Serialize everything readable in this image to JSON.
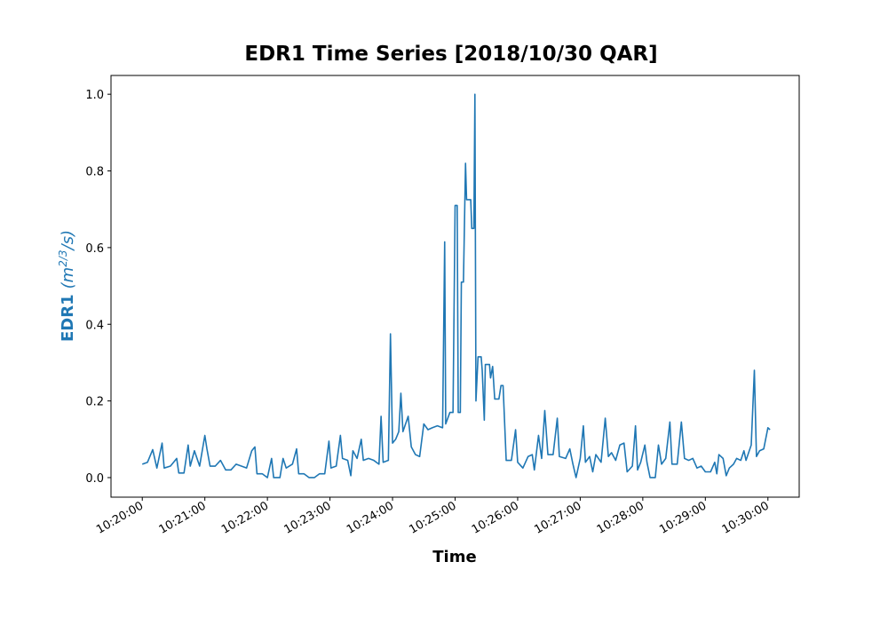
{
  "chart_data": {
    "type": "line",
    "title": "EDR1 Time Series [2018/10/30 QAR]",
    "xlabel": "Time",
    "ylabel_name": "EDR1",
    "ylabel_unit": [
      "(m",
      "2/3",
      "/s)"
    ],
    "ylabel_color": "#1f77b4",
    "color": "#1f77b4",
    "x": [
      "10:20:00",
      "10:20:05",
      "10:20:10",
      "10:20:14",
      "10:20:19",
      "10:20:21",
      "10:20:27",
      "10:20:30",
      "10:20:33",
      "10:20:35",
      "10:20:40",
      "10:20:44",
      "10:20:46",
      "10:20:50",
      "10:20:55",
      "10:21:00",
      "10:21:02",
      "10:21:05",
      "10:21:10",
      "10:21:15",
      "10:21:20",
      "10:21:25",
      "10:21:30",
      "10:21:35",
      "10:21:40",
      "10:21:45",
      "10:21:48",
      "10:21:50",
      "10:21:55",
      "10:22:00",
      "10:22:04",
      "10:22:06",
      "10:22:12",
      "10:22:15",
      "10:22:18",
      "10:22:24",
      "10:22:28",
      "10:22:30",
      "10:22:35",
      "10:22:40",
      "10:22:45",
      "10:22:50",
      "10:22:55",
      "10:22:59",
      "10:23:01",
      "10:23:06",
      "10:23:10",
      "10:23:12",
      "10:23:17",
      "10:23:20",
      "10:23:22",
      "10:23:26",
      "10:23:30",
      "10:23:32",
      "10:23:37",
      "10:23:42",
      "10:23:47",
      "10:23:49",
      "10:23:51",
      "10:23:56",
      "10:23:58",
      "10:24:00",
      "10:24:03",
      "10:24:06",
      "10:24:08",
      "10:24:10",
      "10:24:15",
      "10:24:18",
      "10:24:22",
      "10:24:26",
      "10:24:30",
      "10:24:34",
      "10:24:38",
      "10:24:43",
      "10:24:48",
      "10:24:50",
      "10:24:51",
      "10:24:55",
      "10:24:58",
      "10:25:00",
      "10:25:02",
      "10:25:03",
      "10:25:05",
      "10:25:06",
      "10:25:08",
      "10:25:10",
      "10:25:11",
      "10:25:15",
      "10:25:16",
      "10:25:18",
      "10:25:19",
      "10:25:20",
      "10:25:22",
      "10:25:25",
      "10:25:26",
      "10:25:28",
      "10:25:29",
      "10:25:33",
      "10:25:34",
      "10:25:36",
      "10:25:38",
      "10:25:42",
      "10:25:44",
      "10:25:46",
      "10:25:49",
      "10:25:54",
      "10:25:58",
      "10:26:00",
      "10:26:05",
      "10:26:10",
      "10:26:14",
      "10:26:16",
      "10:26:20",
      "10:26:23",
      "10:26:26",
      "10:26:29",
      "10:26:34",
      "10:26:38",
      "10:26:40",
      "10:26:46",
      "10:26:50",
      "10:26:53",
      "10:26:56",
      "10:27:00",
      "10:27:03",
      "10:27:05",
      "10:27:09",
      "10:27:12",
      "10:27:15",
      "10:27:20",
      "10:27:24",
      "10:27:27",
      "10:27:30",
      "10:27:34",
      "10:27:38",
      "10:27:42",
      "10:27:45",
      "10:27:50",
      "10:27:53",
      "10:27:55",
      "10:27:58",
      "10:28:02",
      "10:28:04",
      "10:28:07",
      "10:28:12",
      "10:28:15",
      "10:28:18",
      "10:28:22",
      "10:28:26",
      "10:28:28",
      "10:28:33",
      "10:28:37",
      "10:28:40",
      "10:28:44",
      "10:28:48",
      "10:28:52",
      "10:28:56",
      "10:29:00",
      "10:29:05",
      "10:29:09",
      "10:29:11",
      "10:29:13",
      "10:29:17",
      "10:29:20",
      "10:29:23",
      "10:29:27",
      "10:29:30",
      "10:29:34",
      "10:29:37",
      "10:29:39",
      "10:29:44",
      "10:29:47",
      "10:29:49",
      "10:29:52",
      "10:29:56",
      "10:30:00",
      "10:30:02"
    ],
    "values": [
      0.035,
      0.04,
      0.073,
      0.025,
      0.09,
      0.025,
      0.03,
      0.04,
      0.05,
      0.012,
      0.012,
      0.085,
      0.03,
      0.07,
      0.03,
      0.11,
      0.075,
      0.03,
      0.03,
      0.045,
      0.02,
      0.02,
      0.035,
      0.03,
      0.025,
      0.07,
      0.08,
      0.01,
      0.01,
      0.0,
      0.05,
      0.0,
      0.0,
      0.05,
      0.025,
      0.035,
      0.075,
      0.01,
      0.01,
      0.0,
      0.0,
      0.01,
      0.01,
      0.095,
      0.025,
      0.03,
      0.11,
      0.05,
      0.045,
      0.005,
      0.07,
      0.05,
      0.1,
      0.045,
      0.05,
      0.045,
      0.035,
      0.16,
      0.04,
      0.045,
      0.375,
      0.09,
      0.1,
      0.12,
      0.22,
      0.12,
      0.16,
      0.08,
      0.06,
      0.055,
      0.14,
      0.125,
      0.13,
      0.135,
      0.13,
      0.615,
      0.14,
      0.17,
      0.17,
      0.71,
      0.71,
      0.17,
      0.17,
      0.51,
      0.51,
      0.82,
      0.725,
      0.725,
      0.65,
      0.65,
      1.0,
      0.2,
      0.315,
      0.315,
      0.28,
      0.15,
      0.295,
      0.295,
      0.26,
      0.29,
      0.205,
      0.205,
      0.24,
      0.24,
      0.045,
      0.045,
      0.125,
      0.04,
      0.025,
      0.055,
      0.06,
      0.02,
      0.11,
      0.05,
      0.175,
      0.06,
      0.06,
      0.155,
      0.055,
      0.05,
      0.075,
      0.035,
      0.0,
      0.05,
      0.135,
      0.04,
      0.055,
      0.015,
      0.06,
      0.04,
      0.155,
      0.055,
      0.065,
      0.045,
      0.085,
      0.09,
      0.015,
      0.03,
      0.135,
      0.02,
      0.04,
      0.085,
      0.04,
      0.0,
      0.0,
      0.085,
      0.035,
      0.05,
      0.145,
      0.035,
      0.035,
      0.145,
      0.05,
      0.045,
      0.05,
      0.025,
      0.03,
      0.015,
      0.015,
      0.04,
      0.01,
      0.06,
      0.05,
      0.005,
      0.025,
      0.035,
      0.05,
      0.045,
      0.07,
      0.045,
      0.085,
      0.28,
      0.055,
      0.07,
      0.075,
      0.13,
      0.125
    ],
    "xlim": [
      "10:19:30",
      "10:30:30"
    ],
    "xticks": [
      "10:20:00",
      "10:21:00",
      "10:22:00",
      "10:23:00",
      "10:24:00",
      "10:25:00",
      "10:26:00",
      "10:27:00",
      "10:28:00",
      "10:29:00",
      "10:30:00"
    ],
    "ylim": [
      -0.051,
      1.049
    ],
    "yticks": [
      {
        "value": 0,
        "label": "0.0"
      },
      {
        "value": 0.2,
        "label": "0.2"
      },
      {
        "value": 0.4,
        "label": "0.4"
      },
      {
        "value": 0.6,
        "label": "0.6"
      },
      {
        "value": 0.8,
        "label": "0.8"
      },
      {
        "value": 1,
        "label": "1.0"
      }
    ]
  }
}
